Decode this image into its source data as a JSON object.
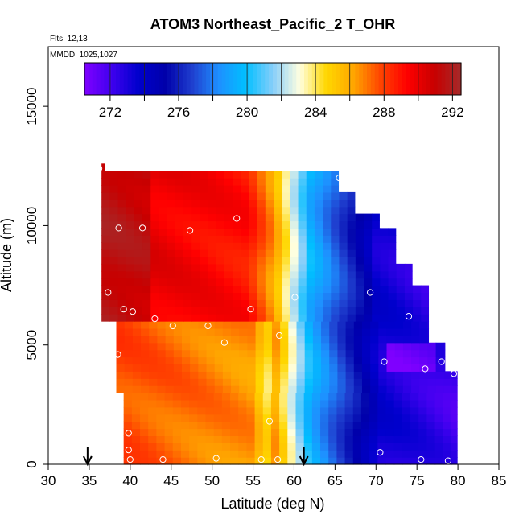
{
  "chart_data": {
    "type": "heatmap",
    "title": "ATOM3 Northeast_Pacific_2 T_OHR",
    "annotations": [
      "Flts: 12,13",
      "MMDD: 1025,1027"
    ],
    "xlabel": "Latitude (deg N)",
    "ylabel": "Altitude (m)",
    "xlim": [
      30,
      85
    ],
    "ylim": [
      0,
      17500
    ],
    "x_ticks": [
      30,
      35,
      40,
      45,
      50,
      55,
      60,
      65,
      70,
      75,
      80,
      85
    ],
    "y_ticks": [
      0,
      5000,
      10000,
      15000
    ],
    "colorbar": {
      "min": 270.5,
      "max": 292.5,
      "ticks": [
        272,
        276,
        280,
        284,
        288,
        292
      ],
      "colors": [
        "#7f00ff",
        "#3f00ef",
        "#0000cd",
        "#0000aa",
        "#1f3fcf",
        "#1e90ff",
        "#00bfff",
        "#87cefa",
        "#ffffe0",
        "#ffd700",
        "#ffa500",
        "#ff4500",
        "#ff0000",
        "#c80000",
        "#a52a2a"
      ],
      "position": "top"
    },
    "profiles": [
      {
        "lat": 36.5,
        "alt_top": 12400
      },
      {
        "lat": 38.5,
        "alt_top": 12400
      },
      {
        "lat": 40,
        "alt_top": 12400
      },
      {
        "lat": 45,
        "alt_top": 12400
      },
      {
        "lat": 50,
        "alt_top": 12400
      },
      {
        "lat": 55,
        "alt_top": 12400
      },
      {
        "lat": 60,
        "alt_top": 12400
      },
      {
        "lat": 65,
        "alt_top": 12400
      },
      {
        "lat": 67,
        "alt_top": 11500
      },
      {
        "lat": 70,
        "alt_top": 10500
      },
      {
        "lat": 72,
        "alt_top": 10000
      },
      {
        "lat": 74,
        "alt_top": 8500
      },
      {
        "lat": 76,
        "alt_top": 7500
      },
      {
        "lat": 78,
        "alt_top": 5200
      },
      {
        "lat": 79.5,
        "alt_top": 3800
      }
    ],
    "temperature_regions": [
      {
        "lat_range": [
          36.5,
          55
        ],
        "alt_range": [
          6000,
          12400
        ],
        "value": 291
      },
      {
        "lat_range": [
          38.5,
          58
        ],
        "alt_range": [
          0,
          6000
        ],
        "value": 288
      },
      {
        "lat_range": [
          58,
          62
        ],
        "alt_range": [
          0,
          12400
        ],
        "value": 283
      },
      {
        "lat_range": [
          62,
          70
        ],
        "alt_range": [
          0,
          12400
        ],
        "value": 278
      },
      {
        "lat_range": [
          70,
          79.5
        ],
        "alt_range": [
          0,
          10500
        ],
        "value": 273
      },
      {
        "lat_range": [
          71,
          77
        ],
        "alt_range": [
          3800,
          5000
        ],
        "value": 271
      }
    ],
    "circles": [
      {
        "lat": 36.2,
        "alt": 12400
      },
      {
        "lat": 65.5,
        "alt": 12000
      },
      {
        "lat": 72.2,
        "alt": 10300
      },
      {
        "lat": 38.6,
        "alt": 9900
      },
      {
        "lat": 41.5,
        "alt": 9900
      },
      {
        "lat": 47.3,
        "alt": 9800
      },
      {
        "lat": 53,
        "alt": 10300
      },
      {
        "lat": 77.3,
        "alt": 7400
      },
      {
        "lat": 37.3,
        "alt": 7200
      },
      {
        "lat": 60.1,
        "alt": 7000
      },
      {
        "lat": 69.3,
        "alt": 7200
      },
      {
        "lat": 39.2,
        "alt": 6500
      },
      {
        "lat": 40.3,
        "alt": 6400
      },
      {
        "lat": 54.7,
        "alt": 6500
      },
      {
        "lat": 43,
        "alt": 6100
      },
      {
        "lat": 45.2,
        "alt": 5800
      },
      {
        "lat": 49.5,
        "alt": 5800
      },
      {
        "lat": 74,
        "alt": 6200
      },
      {
        "lat": 51.5,
        "alt": 5100
      },
      {
        "lat": 58.2,
        "alt": 5400
      },
      {
        "lat": 38.5,
        "alt": 4600
      },
      {
        "lat": 71,
        "alt": 4300
      },
      {
        "lat": 78,
        "alt": 4300
      },
      {
        "lat": 79.5,
        "alt": 3800
      },
      {
        "lat": 76,
        "alt": 4000
      },
      {
        "lat": 57,
        "alt": 1800
      },
      {
        "lat": 39.8,
        "alt": 1300
      },
      {
        "lat": 39.8,
        "alt": 600
      },
      {
        "lat": 70.5,
        "alt": 500
      },
      {
        "lat": 40,
        "alt": 200
      },
      {
        "lat": 44,
        "alt": 200
      },
      {
        "lat": 50.5,
        "alt": 250
      },
      {
        "lat": 56,
        "alt": 200
      },
      {
        "lat": 58,
        "alt": 200
      },
      {
        "lat": 75.5,
        "alt": 200
      },
      {
        "lat": 78.8,
        "alt": 150
      }
    ],
    "arrows": [
      34.8,
      61.2
    ]
  }
}
